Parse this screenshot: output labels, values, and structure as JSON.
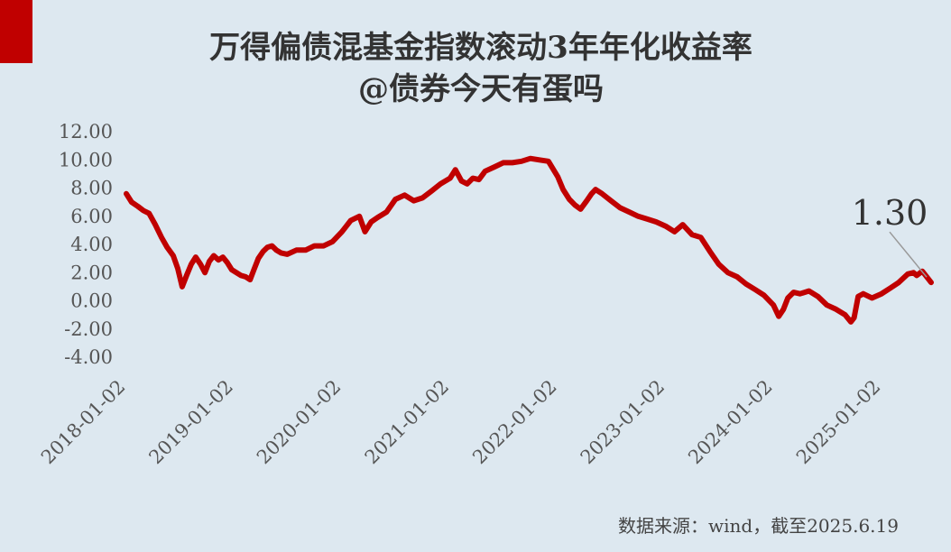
{
  "accent_color": "#c00000",
  "line_color": "#c00000",
  "title_line1": "万得偏债混基金指数滚动3年年化收益率",
  "title_line2": "@债券今天有蛋吗",
  "source_note": "数据来源：wind，截至2025.6.19",
  "chart_data": {
    "type": "line",
    "title": "万得偏债混基金指数滚动3年年化收益率",
    "subtitle": "@债券今天有蛋吗",
    "xlabel": "",
    "ylabel": "",
    "ylim": [
      -4,
      12
    ],
    "xlim": [
      "2018-01-02",
      "2025-06-19"
    ],
    "yticks": [
      "12.00",
      "10.00",
      "8.00",
      "6.00",
      "4.00",
      "2.00",
      "0.00",
      "-2.00",
      "-4.00"
    ],
    "xticks": [
      "2018-01-02",
      "2019-01-02",
      "2020-01-02",
      "2021-01-02",
      "2022-01-02",
      "2023-01-02",
      "2024-01-02",
      "2025-01-02"
    ],
    "grid": false,
    "legend": "none",
    "annotation": {
      "text": "1.30",
      "x": "2025-06-19",
      "y": 1.3
    },
    "series": [
      {
        "x": [
          "2018-01-02",
          "2018-01-20",
          "2018-02-10",
          "2018-03-01",
          "2018-03-20",
          "2018-04-10",
          "2018-05-01",
          "2018-05-20",
          "2018-06-10",
          "2018-06-25",
          "2018-07-10",
          "2018-07-25",
          "2018-08-10",
          "2018-08-25",
          "2018-09-10",
          "2018-09-25",
          "2018-10-10",
          "2018-10-25",
          "2018-11-10",
          "2018-11-25",
          "2018-12-10",
          "2018-12-25",
          "2019-01-10",
          "2019-01-25",
          "2019-02-10",
          "2019-02-25",
          "2019-03-10",
          "2019-03-25",
          "2019-04-10",
          "2019-04-25",
          "2019-05-10",
          "2019-05-25",
          "2019-06-10",
          "2019-07-01",
          "2019-08-01",
          "2019-09-01",
          "2019-10-01",
          "2019-11-01",
          "2019-12-01",
          "2020-01-02",
          "2020-02-01",
          "2020-03-01",
          "2020-03-20",
          "2020-04-10",
          "2020-05-01",
          "2020-06-01",
          "2020-07-01",
          "2020-08-01",
          "2020-09-01",
          "2020-10-01",
          "2020-11-01",
          "2020-12-01",
          "2021-01-02",
          "2021-01-20",
          "2021-02-10",
          "2021-03-01",
          "2021-03-20",
          "2021-04-10",
          "2021-05-01",
          "2021-06-01",
          "2021-07-01",
          "2021-08-01",
          "2021-09-01",
          "2021-10-01",
          "2021-11-01",
          "2021-12-01",
          "2022-01-02",
          "2022-01-20",
          "2022-02-10",
          "2022-03-01",
          "2022-03-20",
          "2022-04-10",
          "2022-04-26",
          "2022-05-10",
          "2022-06-01",
          "2022-07-01",
          "2022-08-01",
          "2022-09-01",
          "2022-10-01",
          "2022-11-01",
          "2022-12-01",
          "2023-01-02",
          "2023-02-01",
          "2023-03-01",
          "2023-04-01",
          "2023-05-01",
          "2023-06-01",
          "2023-07-01",
          "2023-08-01",
          "2023-09-01",
          "2023-10-01",
          "2023-11-01",
          "2023-12-01",
          "2024-01-02",
          "2024-01-20",
          "2024-02-05",
          "2024-02-20",
          "2024-03-10",
          "2024-04-01",
          "2024-05-01",
          "2024-06-01",
          "2024-07-01",
          "2024-08-01",
          "2024-09-01",
          "2024-09-20",
          "2024-10-01",
          "2024-10-15",
          "2024-11-01",
          "2024-12-01",
          "2025-01-02",
          "2025-02-01",
          "2025-03-01",
          "2025-04-01",
          "2025-04-20",
          "2025-05-01",
          "2025-05-20",
          "2025-06-19"
        ],
        "y": [
          7.6,
          7.0,
          6.7,
          6.4,
          6.2,
          5.4,
          4.5,
          3.8,
          3.2,
          2.3,
          1.0,
          1.8,
          2.6,
          3.1,
          2.6,
          2.0,
          2.8,
          3.2,
          2.9,
          3.1,
          2.7,
          2.2,
          2.0,
          1.8,
          1.7,
          1.5,
          2.2,
          3.0,
          3.5,
          3.8,
          3.9,
          3.6,
          3.4,
          3.3,
          3.6,
          3.6,
          3.9,
          3.9,
          4.2,
          4.9,
          5.7,
          6.0,
          4.9,
          5.6,
          5.9,
          6.3,
          7.2,
          7.5,
          7.1,
          7.3,
          7.8,
          8.3,
          8.7,
          9.3,
          8.5,
          8.3,
          8.7,
          8.6,
          9.2,
          9.5,
          9.8,
          9.8,
          9.9,
          10.1,
          10.0,
          9.9,
          8.8,
          7.9,
          7.2,
          6.8,
          6.5,
          7.1,
          7.6,
          7.9,
          7.6,
          7.1,
          6.6,
          6.3,
          6.0,
          5.8,
          5.6,
          5.3,
          4.9,
          5.4,
          4.7,
          4.5,
          3.5,
          2.6,
          2.0,
          1.7,
          1.2,
          0.8,
          0.4,
          -0.3,
          -1.1,
          -0.6,
          0.2,
          0.6,
          0.5,
          0.7,
          0.3,
          -0.3,
          -0.6,
          -1.0,
          -1.5,
          -1.2,
          0.3,
          0.5,
          0.2,
          0.5,
          0.9,
          1.3,
          1.9,
          2.0,
          1.8,
          2.1,
          1.3
        ]
      }
    ]
  }
}
